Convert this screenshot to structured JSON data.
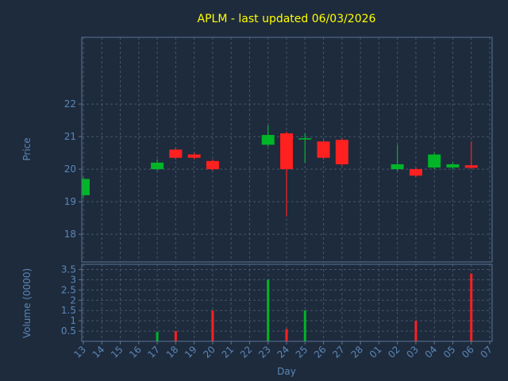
{
  "chart_data": {
    "type": "candlestick",
    "title": "APLM - last updated 06/03/2026",
    "xlabel": "Day",
    "price_ylabel": "Price",
    "volume_ylabel": "Volume (0000)",
    "x_ticklabels": [
      "13",
      "14",
      "15",
      "16",
      "17",
      "18",
      "19",
      "20",
      "21",
      "22",
      "23",
      "24",
      "25",
      "26",
      "27",
      "28",
      "01",
      "02",
      "03",
      "04",
      "05",
      "06",
      "07"
    ],
    "price_yticks": [
      "18",
      "19",
      "20",
      "21",
      "22"
    ],
    "price_ylim": [
      17.15,
      24.05
    ],
    "volume_yticks": [
      "0.5",
      "1",
      "1.5",
      "2",
      "2.5",
      "3",
      "3.5"
    ],
    "volume_ylim": [
      0,
      3.75
    ],
    "grid": "dashed",
    "legend": "none",
    "colors": {
      "background": "#1e2b3d",
      "up": "#00b527",
      "down": "#ff2020",
      "title": "#ffff00",
      "axis_text": "#5b87b7",
      "grid": "#45566b",
      "spine": "#5c7392"
    },
    "candles": [
      {
        "day": "13",
        "open": 19.2,
        "close": 19.7,
        "high": 19.75,
        "low": 19.1,
        "volume": 0
      },
      {
        "day": "17",
        "open": 20.0,
        "close": 20.2,
        "high": 20.3,
        "low": 19.95,
        "volume": 0.45
      },
      {
        "day": "18",
        "open": 20.6,
        "close": 20.35,
        "high": 20.65,
        "low": 20.3,
        "volume": 0.5
      },
      {
        "day": "19",
        "open": 20.45,
        "close": 20.35,
        "high": 20.5,
        "low": 20.3,
        "volume": 0
      },
      {
        "day": "20",
        "open": 20.25,
        "close": 20.0,
        "high": 20.3,
        "low": 19.95,
        "volume": 1.5
      },
      {
        "day": "23",
        "open": 20.75,
        "close": 21.05,
        "high": 21.35,
        "low": 20.7,
        "volume": 3.0
      },
      {
        "day": "24",
        "open": 21.1,
        "close": 20.0,
        "high": 21.15,
        "low": 18.55,
        "volume": 0.6
      },
      {
        "day": "25",
        "open": 20.95,
        "close": 20.95,
        "high": 21.1,
        "low": 20.2,
        "volume": 1.5
      },
      {
        "day": "26",
        "open": 20.85,
        "close": 20.35,
        "high": 20.9,
        "low": 20.3,
        "volume": 0
      },
      {
        "day": "27",
        "open": 20.9,
        "close": 20.15,
        "high": 20.95,
        "low": 20.1,
        "volume": 0
      },
      {
        "day": "02",
        "open": 20.0,
        "close": 20.15,
        "high": 20.75,
        "low": 19.95,
        "volume": 0
      },
      {
        "day": "03",
        "open": 20.0,
        "close": 19.8,
        "high": 20.05,
        "low": 19.75,
        "volume": 1.0
      },
      {
        "day": "04",
        "open": 20.05,
        "close": 20.45,
        "high": 20.5,
        "low": 20.0,
        "volume": 0
      },
      {
        "day": "05",
        "open": 20.05,
        "close": 20.15,
        "high": 20.2,
        "low": 20.0,
        "volume": 0
      },
      {
        "day": "06",
        "open": 20.12,
        "close": 20.04,
        "high": 20.85,
        "low": 20.0,
        "volume": 3.3
      }
    ]
  }
}
